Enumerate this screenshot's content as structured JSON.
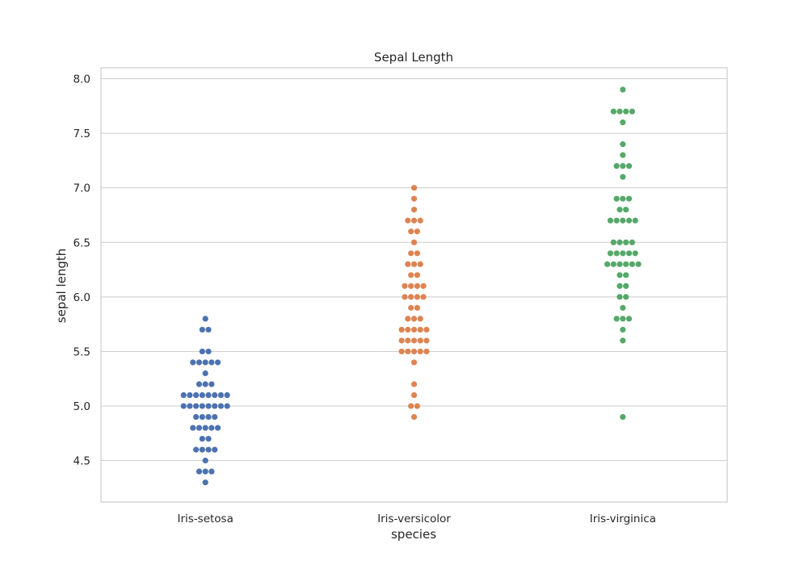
{
  "chart_data": {
    "type": "scatter",
    "subtype": "swarm",
    "title": "Sepal Length",
    "xlabel": "species",
    "ylabel": "sepal length",
    "categories": [
      "Iris-setosa",
      "Iris-versicolor",
      "Iris-virginica"
    ],
    "ylim": [
      4.12,
      8.1
    ],
    "yticks": [
      4.5,
      5.0,
      5.5,
      6.0,
      6.5,
      7.0,
      7.5,
      8.0
    ],
    "ytick_labels": [
      "4.5",
      "5.0",
      "5.5",
      "6.0",
      "6.5",
      "7.0",
      "7.5",
      "8.0"
    ],
    "grid": true,
    "series": [
      {
        "category": "Iris-setosa",
        "color": "#4c72b0",
        "values": [
          5.1,
          4.9,
          4.7,
          4.6,
          5.0,
          5.4,
          4.6,
          5.0,
          4.4,
          4.9,
          5.4,
          4.8,
          4.8,
          4.3,
          5.8,
          5.7,
          5.4,
          5.1,
          5.7,
          5.1,
          5.4,
          5.1,
          4.6,
          5.1,
          4.8,
          5.0,
          5.0,
          5.2,
          5.2,
          4.7,
          4.8,
          5.4,
          5.2,
          5.5,
          4.9,
          5.0,
          5.5,
          4.9,
          4.4,
          5.1,
          5.0,
          4.5,
          4.4,
          5.0,
          5.1,
          4.8,
          5.1,
          4.6,
          5.3,
          5.0
        ]
      },
      {
        "category": "Iris-versicolor",
        "color": "#dd8452",
        "values": [
          7.0,
          6.4,
          6.9,
          5.5,
          6.5,
          5.7,
          6.3,
          4.9,
          6.6,
          5.2,
          5.0,
          5.9,
          6.0,
          6.1,
          5.6,
          6.7,
          5.6,
          5.8,
          6.2,
          5.6,
          5.9,
          6.1,
          6.3,
          6.1,
          6.4,
          6.6,
          6.8,
          6.7,
          6.0,
          5.7,
          5.5,
          5.5,
          5.8,
          6.0,
          5.4,
          6.0,
          6.7,
          6.3,
          5.6,
          5.5,
          5.5,
          6.1,
          5.8,
          5.0,
          5.6,
          5.7,
          5.7,
          6.2,
          5.1,
          5.7
        ]
      },
      {
        "category": "Iris-virginica",
        "color": "#55a868",
        "values": [
          6.3,
          5.8,
          7.1,
          6.3,
          6.5,
          7.6,
          4.9,
          7.3,
          6.7,
          7.2,
          6.5,
          6.4,
          6.8,
          5.7,
          5.8,
          6.4,
          6.5,
          7.7,
          7.7,
          6.0,
          6.9,
          5.6,
          7.7,
          6.3,
          6.7,
          7.2,
          6.2,
          6.1,
          6.4,
          7.2,
          7.4,
          7.9,
          6.4,
          6.3,
          6.1,
          7.7,
          6.3,
          6.4,
          6.0,
          6.9,
          6.7,
          6.9,
          5.8,
          6.8,
          6.7,
          6.7,
          6.3,
          6.5,
          6.2,
          5.9
        ]
      }
    ]
  }
}
